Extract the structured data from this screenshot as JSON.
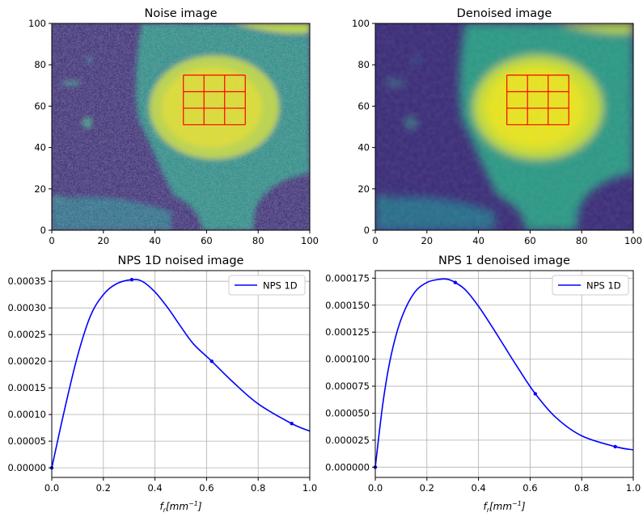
{
  "chart_data": [
    {
      "type": "heatmap",
      "title": "Noise image",
      "xlim": [
        0,
        100
      ],
      "ylim": [
        0,
        100
      ],
      "xticks": [
        "0",
        "20",
        "40",
        "60",
        "80",
        "100"
      ],
      "yticks": [
        "0",
        "20",
        "40",
        "60",
        "80",
        "100"
      ],
      "colormap": "viridis",
      "roi_grid": {
        "x": [
          51,
          59,
          67,
          75
        ],
        "y": [
          51,
          59,
          67,
          75
        ],
        "color": "#ff0000"
      }
    },
    {
      "type": "heatmap",
      "title": "Denoised image",
      "xlim": [
        0,
        100
      ],
      "ylim": [
        0,
        100
      ],
      "xticks": [
        "0",
        "20",
        "40",
        "60",
        "80",
        "100"
      ],
      "yticks": [
        "0",
        "20",
        "40",
        "60",
        "80",
        "100"
      ],
      "colormap": "viridis",
      "roi_grid": {
        "x": [
          51,
          59,
          67,
          75
        ],
        "y": [
          51,
          59,
          67,
          75
        ],
        "color": "#ff0000"
      }
    },
    {
      "type": "line",
      "title": "NPS 1D noised image",
      "xlabel": "f_r[mm^-1]",
      "xlim": [
        0,
        1
      ],
      "ylim": [
        -1.8e-05,
        0.00037
      ],
      "xticks": [
        "0.0",
        "0.2",
        "0.4",
        "0.6",
        "0.8",
        "1.0"
      ],
      "yticks": [
        "0.00000",
        "0.00005",
        "0.00010",
        "0.00015",
        "0.00020",
        "0.00025",
        "0.00030",
        "0.00035"
      ],
      "grid": true,
      "legend": "top-right",
      "series": [
        {
          "name": "NPS 1D",
          "color": "#0000ff",
          "x": [
            0,
            0.05,
            0.1,
            0.15,
            0.2,
            0.25,
            0.31,
            0.35,
            0.4,
            0.45,
            0.5,
            0.55,
            0.62,
            0.7,
            0.8,
            0.93,
            1.0
          ],
          "y": [
            0,
            0.00011,
            0.00021,
            0.000285,
            0.000325,
            0.000345,
            0.000353,
            0.00035,
            0.00033,
            0.0003,
            0.000265,
            0.000232,
            0.0002,
            0.000162,
            0.00012,
            8.3e-05,
            6.9e-05
          ],
          "markers_x": [
            0,
            0.31,
            0.62,
            0.93
          ],
          "markers_y": [
            0,
            0.000353,
            0.0002,
            8.3e-05
          ]
        }
      ]
    },
    {
      "type": "line",
      "title": "NPS 1 denoised image",
      "xlabel": "f_r[mm^-1]",
      "xlim": [
        0,
        1
      ],
      "ylim": [
        -9.5e-06,
        0.000182
      ],
      "xticks": [
        "0.0",
        "0.2",
        "0.4",
        "0.6",
        "0.8",
        "1.0"
      ],
      "yticks": [
        "0.000000",
        "0.000025",
        "0.000050",
        "0.000075",
        "0.000100",
        "0.000125",
        "0.000150",
        "0.000175"
      ],
      "grid": true,
      "legend": "top-right",
      "series": [
        {
          "name": "NPS 1D",
          "color": "#0000ff",
          "x": [
            0,
            0.03,
            0.06,
            0.1,
            0.15,
            0.2,
            0.25,
            0.28,
            0.31,
            0.35,
            0.4,
            0.45,
            0.5,
            0.55,
            0.62,
            0.7,
            0.8,
            0.93,
            1.0
          ],
          "y": [
            0,
            6e-05,
            0.000102,
            0.000137,
            0.000161,
            0.000171,
            0.000174,
            0.000174,
            0.000171,
            0.000164,
            0.000149,
            0.000131,
            0.000112,
            9.3e-05,
            6.8e-05,
            4.6e-05,
            2.9e-05,
            1.9e-05,
            1.6e-05
          ],
          "markers_x": [
            0,
            0.31,
            0.62,
            0.93
          ],
          "markers_y": [
            0,
            0.000171,
            6.8e-05,
            1.9e-05
          ]
        }
      ]
    }
  ]
}
